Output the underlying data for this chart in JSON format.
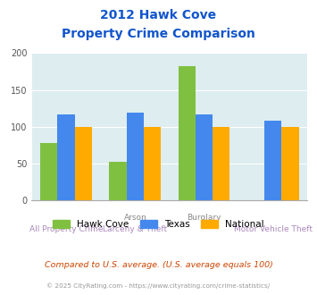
{
  "title_line1": "2012 Hawk Cove",
  "title_line2": "Property Crime Comparison",
  "x_labels_row1": [
    "",
    "Arson",
    "Burglary",
    ""
  ],
  "x_labels_row2": [
    "All Property Crime",
    "Larceny & Theft",
    "",
    "Motor Vehicle Theft"
  ],
  "hawk_cove": [
    78,
    52,
    182,
    0
  ],
  "texas": [
    117,
    119,
    117,
    108
  ],
  "national": [
    100,
    100,
    100,
    100
  ],
  "hawk_cove_color": "#80c040",
  "texas_color": "#4488ee",
  "national_color": "#ffaa00",
  "ylim": [
    0,
    200
  ],
  "yticks": [
    0,
    50,
    100,
    150,
    200
  ],
  "bar_width": 0.25,
  "plot_bg_color": "#ddedf0",
  "grid_color": "#ffffff",
  "title_color": "#1155cc",
  "legend_labels": [
    "Hawk Cove",
    "Texas",
    "National"
  ],
  "footer_text1": "Compared to U.S. average. (U.S. average equals 100)",
  "footer_text2": "© 2025 CityRating.com - https://www.cityrating.com/crime-statistics/",
  "footer_color1": "#cc4400",
  "footer_color2": "#999999",
  "row1_label_color": "#888888",
  "row2_label_color": "#aa88bb"
}
